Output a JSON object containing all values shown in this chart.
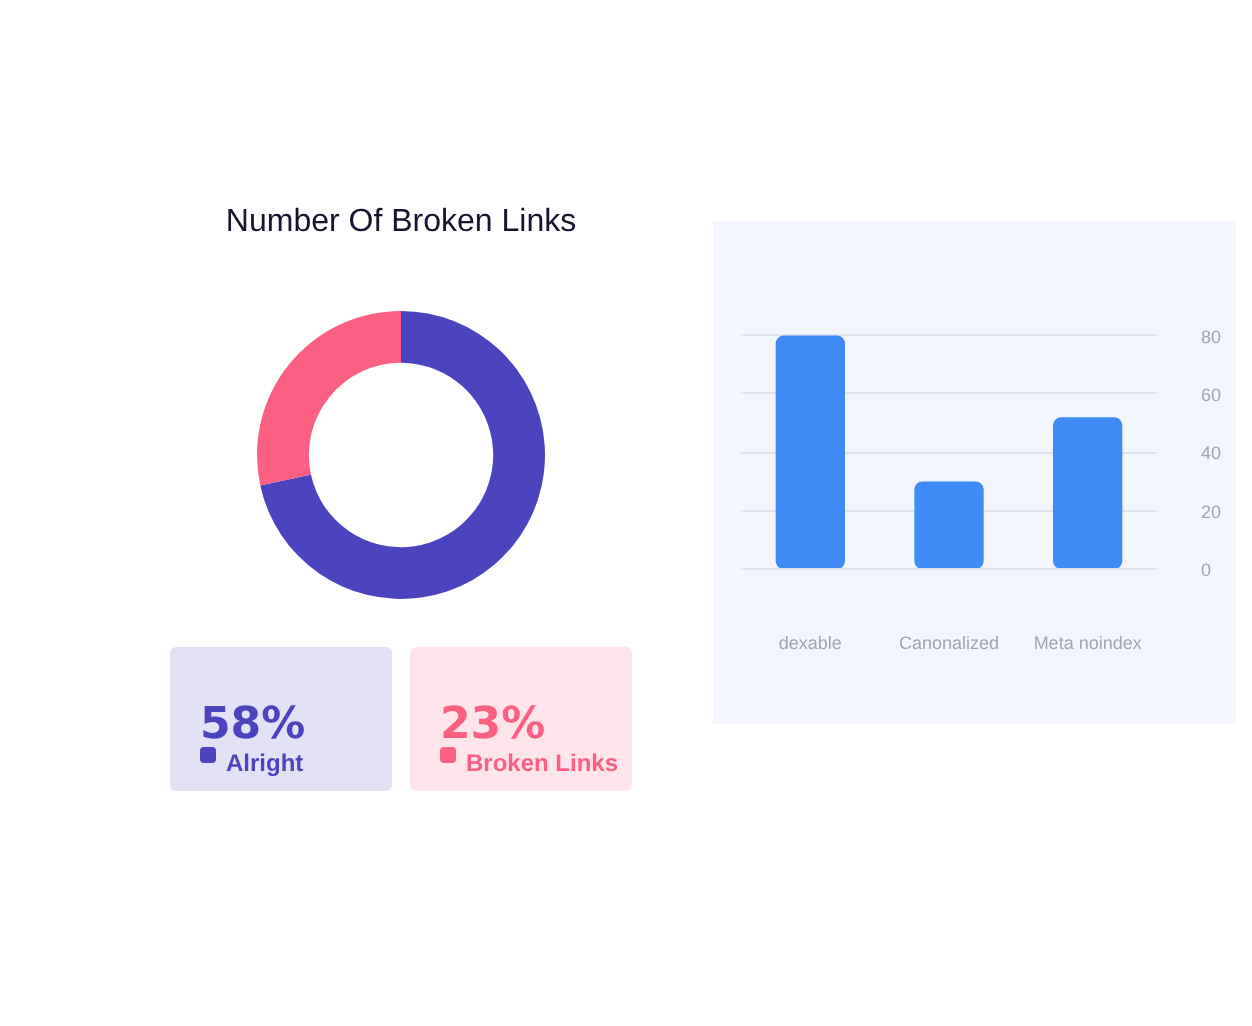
{
  "chart_data": [
    {
      "type": "donut",
      "title": "Number Of Broken Links",
      "categories": [
        "Alright",
        "Broken Links"
      ],
      "values": [
        58,
        23
      ],
      "colors": [
        "#4c44bf",
        "#fb5f82"
      ],
      "value_labels": [
        "58%",
        "23%"
      ],
      "legend": "bottom"
    },
    {
      "type": "bar",
      "categories": [
        "dexable",
        "Canonalized",
        "Meta noindex"
      ],
      "values": [
        80,
        30,
        52
      ],
      "color": "#3f8cf6",
      "ylim": [
        0,
        85
      ],
      "yticks": [
        0,
        20,
        40,
        60,
        80
      ],
      "grid": "y"
    }
  ]
}
